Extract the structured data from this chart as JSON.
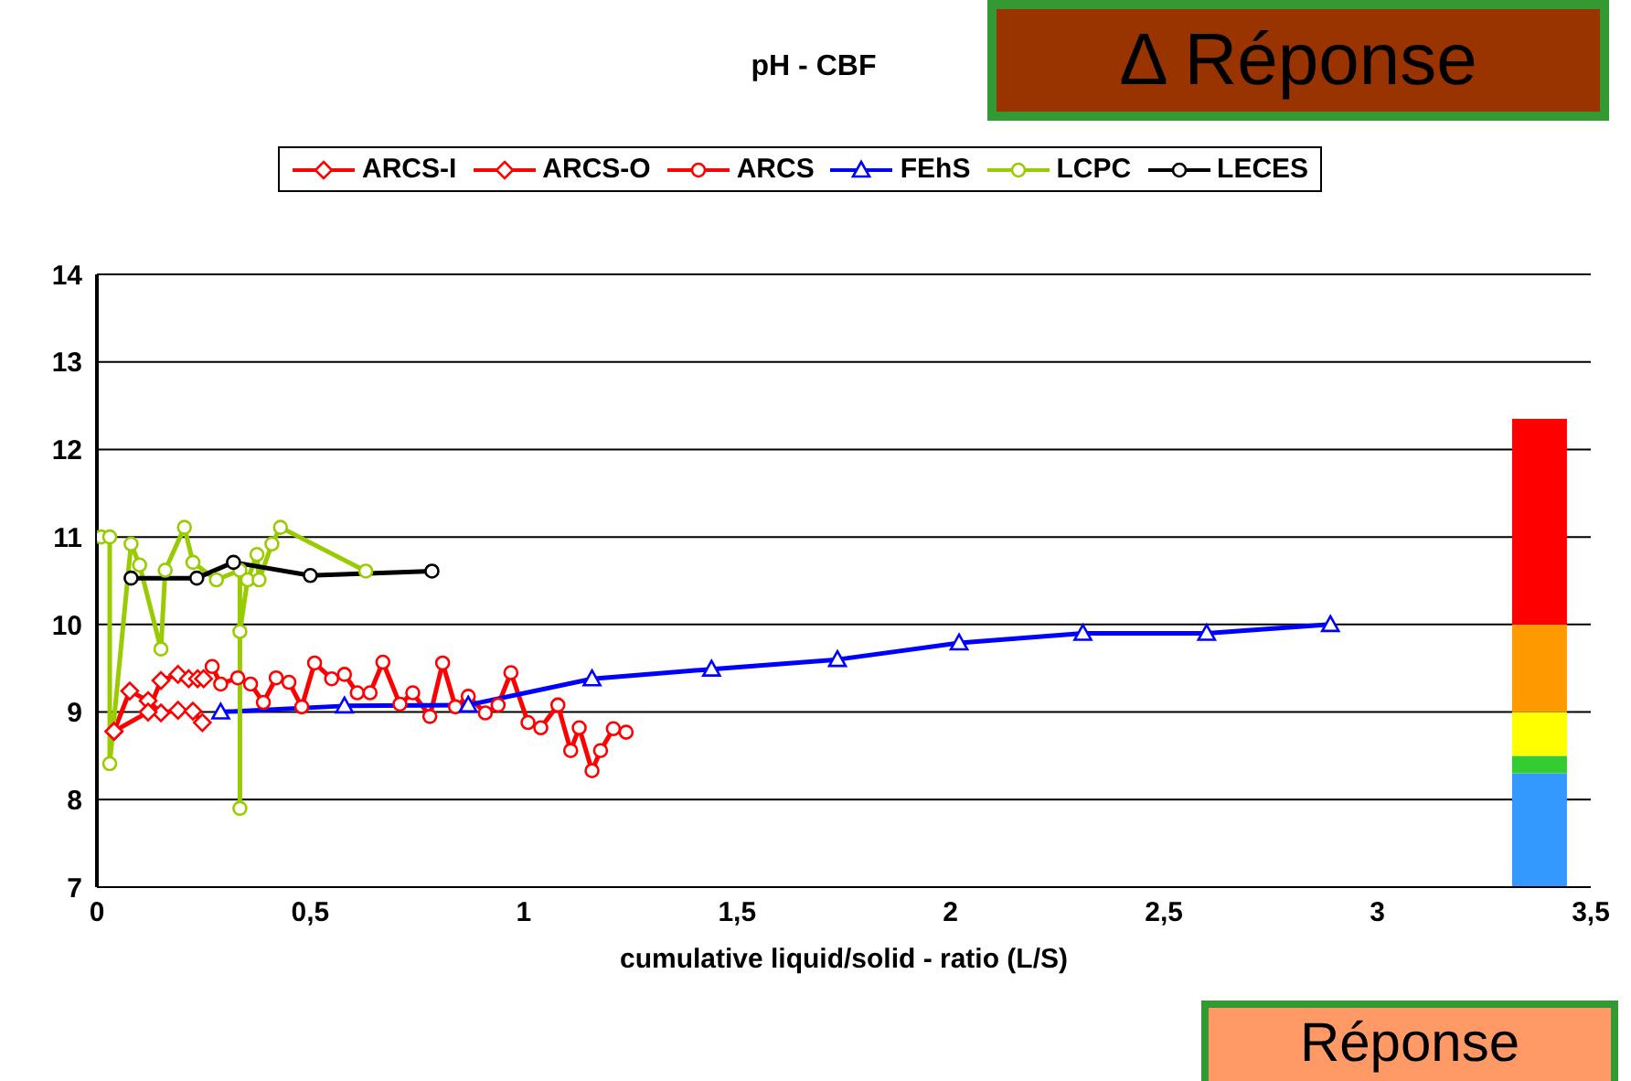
{
  "chart_data": {
    "type": "line",
    "title": "pH - CBF",
    "xlabel": "cumulative liquid/solid - ratio (L/S)",
    "xlim": [
      0,
      3.5
    ],
    "xticks": [
      0,
      {
        "value": 0.5,
        "label": "0,5"
      },
      1,
      {
        "value": 1.5,
        "label": "1,5"
      },
      2,
      {
        "value": 2.5,
        "label": "2,5"
      },
      3,
      {
        "value": 3.5,
        "label": "3,5"
      }
    ],
    "ylim": [
      7,
      14
    ],
    "yticks": [
      7,
      8,
      9,
      10,
      11,
      12,
      13,
      14
    ],
    "grid": "y",
    "legend": "top",
    "series": [
      {
        "name": "ARCS-I",
        "color": "#ff0000",
        "marker": "diamond",
        "x": [
          0.04,
          0.077,
          0.12,
          0.15,
          0.19,
          0.225,
          0.247
        ],
        "values": [
          8.78,
          9.24,
          9.13,
          8.99,
          9.02,
          9.01,
          8.88
        ]
      },
      {
        "name": "ARCS-O",
        "color": "#ff0000",
        "marker": "diamond",
        "x": [
          0.04,
          0.12,
          0.15,
          0.19,
          0.215,
          0.236,
          0.25
        ],
        "values": [
          8.78,
          9.0,
          9.36,
          9.43,
          9.38,
          9.38,
          9.38
        ]
      },
      {
        "name": "ARCS",
        "color": "#ff0000",
        "marker": "circle",
        "x": [
          0.27,
          0.29,
          0.33,
          0.36,
          0.39,
          0.42,
          0.45,
          0.48,
          0.51,
          0.55,
          0.58,
          0.61,
          0.64,
          0.67,
          0.71,
          0.74,
          0.78,
          0.81,
          0.84,
          0.87,
          0.91,
          0.94,
          0.97,
          1.01,
          1.04,
          1.08,
          1.11,
          1.13,
          1.16,
          1.18,
          1.21,
          1.24
        ],
        "values": [
          9.52,
          9.32,
          9.39,
          9.32,
          9.11,
          9.39,
          9.34,
          9.06,
          9.56,
          9.38,
          9.43,
          9.22,
          9.22,
          9.57,
          9.09,
          9.22,
          8.95,
          9.56,
          9.06,
          9.18,
          8.99,
          9.08,
          9.45,
          8.88,
          8.82,
          9.08,
          8.56,
          8.82,
          8.33,
          8.56,
          8.81,
          8.77
        ]
      },
      {
        "name": "FEhS",
        "color": "#0000ff",
        "marker": "triangle",
        "x": [
          0.29,
          0.58,
          0.87,
          1.16,
          1.44,
          1.735,
          2.02,
          2.31,
          2.6,
          2.89
        ],
        "values": [
          9.0,
          9.07,
          9.08,
          9.38,
          9.49,
          9.6,
          9.79,
          9.9,
          9.9,
          10.0
        ]
      },
      {
        "name": "LCPC",
        "color": "#99cc00",
        "marker": "circle",
        "x": [
          0.01,
          0.03,
          0.03,
          0.08,
          0.1,
          0.15,
          0.16,
          0.205,
          0.225,
          0.28,
          0.335,
          0.335,
          0.335,
          0.353,
          0.375,
          0.38,
          0.41,
          0.43,
          0.63
        ],
        "values": [
          11.0,
          11.0,
          8.41,
          10.92,
          10.68,
          9.72,
          10.62,
          11.11,
          10.71,
          10.51,
          10.62,
          7.9,
          9.92,
          10.51,
          10.8,
          10.51,
          10.92,
          11.11,
          10.61
        ]
      },
      {
        "name": "LECES",
        "color": "#000000",
        "marker": "circle",
        "x": [
          0.08,
          0.234,
          0.32,
          0.5,
          0.785
        ],
        "values": [
          10.53,
          10.53,
          10.71,
          10.56,
          10.61
        ]
      },
      {
        "type": "bar",
        "color": "#3399ff",
        "x": [
          3.38
        ],
        "base": [
          7
        ],
        "values": [
          1.3
        ]
      },
      {
        "type": "bar",
        "color": "#33cc33",
        "x": [
          3.38
        ],
        "base": [
          8.3
        ],
        "values": [
          0.2
        ]
      },
      {
        "type": "bar",
        "color": "#ffff00",
        "x": [
          3.38
        ],
        "base": [
          8.5
        ],
        "values": [
          0.5
        ]
      },
      {
        "type": "bar",
        "color": "#ff9900",
        "x": [
          3.38
        ],
        "base": [
          9
        ],
        "values": [
          1
        ]
      },
      {
        "type": "bar",
        "color": "#ff0000",
        "x": [
          3.38
        ],
        "base": [
          10
        ],
        "values": [
          2.35
        ]
      }
    ],
    "annotations": [
      "Δ Réponse",
      "Réponse"
    ]
  }
}
